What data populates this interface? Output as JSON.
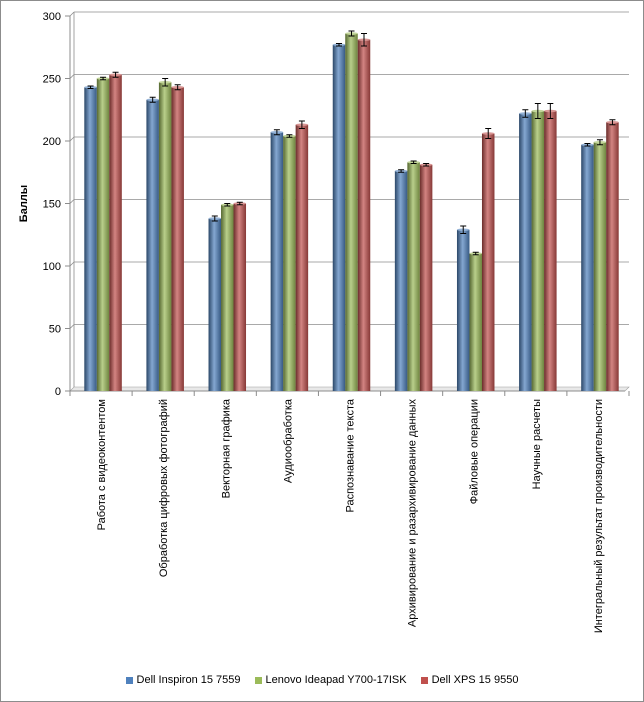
{
  "chart_data": {
    "type": "bar",
    "title": "",
    "xlabel": "",
    "ylabel": "Баллы",
    "ylim": [
      0,
      300
    ],
    "yticks": [
      0,
      50,
      100,
      150,
      200,
      250,
      300
    ],
    "grid": true,
    "legend_position": "bottom",
    "error_bars": true,
    "categories": [
      "Работа с видеоконтентом",
      "Обработка цифровых фотографий",
      "Векторная графика",
      "Аудиообработка",
      "Распознавание текста",
      "Архивирование и разархивирование данных",
      "Файловые операции",
      "Научные расчеты",
      "Интегральный результат производительности"
    ],
    "series": [
      {
        "name": "Dell Inspiron 15 7559",
        "color": "#4f81bd",
        "values": [
          243,
          233,
          138,
          207,
          277,
          176,
          129,
          222,
          197
        ],
        "errors": [
          1,
          2,
          2,
          2,
          1,
          1,
          3,
          3,
          1
        ]
      },
      {
        "name": "Lenovo Ideapad Y700-17ISK",
        "color": "#9bbb59",
        "values": [
          250,
          247,
          149,
          204,
          286,
          183,
          110,
          224,
          199
        ],
        "errors": [
          1,
          3,
          1,
          1,
          2,
          1,
          1,
          6,
          2
        ]
      },
      {
        "name": "Dell XPS 15 9550",
        "color": "#c0504d",
        "values": [
          253,
          243,
          150,
          213,
          281,
          181,
          206,
          224,
          215
        ],
        "errors": [
          2,
          2,
          1,
          3,
          5,
          1,
          4,
          6,
          2
        ]
      }
    ]
  }
}
